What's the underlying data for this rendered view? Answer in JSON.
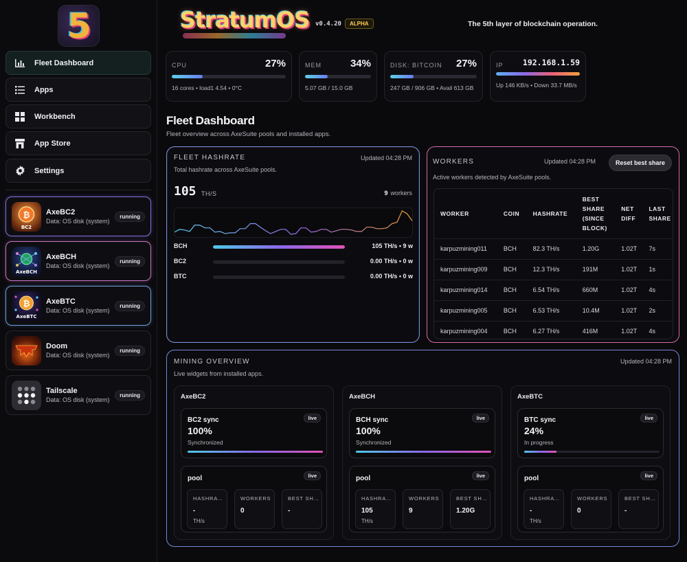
{
  "app": {
    "brand": "StratumOS",
    "version": "v0.4.20",
    "badge": "ALPHA",
    "tagline": "The 5th layer of blockchain operation."
  },
  "nav": [
    {
      "label": "Fleet Dashboard",
      "icon": "bar-chart-icon",
      "active": true
    },
    {
      "label": "Apps",
      "icon": "list-icon"
    },
    {
      "label": "Workbench",
      "icon": "grid-icon"
    },
    {
      "label": "App Store",
      "icon": "store-icon"
    },
    {
      "label": "Settings",
      "icon": "gear-icon"
    }
  ],
  "installed_apps": [
    {
      "name": "AxeBC2",
      "sub": "Data: OS disk (system)",
      "status": "running",
      "icon_text": "BC2",
      "accent": "#f07a2a"
    },
    {
      "name": "AxeBCH",
      "sub": "Data: OS disk (system)",
      "status": "running",
      "icon_text": "AxeBCH",
      "accent": "#3aa0e8"
    },
    {
      "name": "AxeBTC",
      "sub": "Data: OS disk (system)",
      "status": "running",
      "icon_text": "AxeBTC",
      "accent": "#f0a030"
    },
    {
      "name": "Doom",
      "sub": "Data: OS disk (system)",
      "status": "running",
      "accent": "#e05a20"
    },
    {
      "name": "Tailscale",
      "sub": "Data: OS disk (system)",
      "status": "running",
      "accent": "#3a3a40"
    }
  ],
  "stats": {
    "cpu": {
      "label": "CPU",
      "value": "27%",
      "pct": 27,
      "foot": "16 cores • load1 4.54 • 0°C"
    },
    "mem": {
      "label": "MEM",
      "value": "34%",
      "pct": 34,
      "foot": "5.07 GB / 15.0 GB"
    },
    "disk": {
      "label": "DISK: BITCOIN",
      "value": "27%",
      "pct": 27,
      "foot": "247 GB / 906 GB • Avail 613 GB"
    },
    "ip": {
      "label": "IP",
      "value": "192.168.1.59",
      "foot": "Up 146 KB/s • Down 33.7 MB/s"
    }
  },
  "page": {
    "title": "Fleet Dashboard",
    "subtitle": "Fleet overview across AxeSuite pools and installed apps."
  },
  "hashrate": {
    "title": "FLEET HASHRATE",
    "updated": "Updated 04:28 PM",
    "desc": "Total hashrate across AxeSuite pools.",
    "total": "105",
    "unit": "TH/S",
    "workers_n": "9",
    "workers_label": "workers",
    "spark": [
      40,
      44,
      43,
      41,
      50,
      50,
      46,
      46,
      40,
      41,
      38,
      39,
      39,
      45,
      45,
      52,
      52,
      47,
      42,
      38,
      41,
      44,
      44,
      37,
      38,
      46,
      46,
      40,
      41,
      44,
      44,
      40,
      42,
      44,
      44,
      43,
      41,
      41,
      47,
      47,
      45,
      45,
      46,
      52,
      54,
      70,
      66,
      56
    ],
    "coins": [
      {
        "coin": "BCH",
        "value": "105 TH/s • 9 w",
        "share": 1.0
      },
      {
        "coin": "BC2",
        "value": "0.00 TH/s • 0 w",
        "share": 0
      },
      {
        "coin": "BTC",
        "value": "0.00 TH/s • 0 w",
        "share": 0
      }
    ]
  },
  "workers": {
    "title": "WORKERS",
    "updated": "Updated 04:28 PM",
    "reset_label": "Reset best share",
    "desc": "Active workers detected by AxeSuite pools.",
    "columns": [
      "WORKER",
      "COIN",
      "HASHRATE",
      "BEST SHARE (SINCE BLOCK)",
      "NET DIFF",
      "LAST SHARE"
    ],
    "rows": [
      [
        "karpuzmining011",
        "BCH",
        "82.3 TH/s",
        "1.20G",
        "1.02T",
        "7s"
      ],
      [
        "karpuzmining009",
        "BCH",
        "12.3 TH/s",
        "191M",
        "1.02T",
        "1s"
      ],
      [
        "karpuzmining014",
        "BCH",
        "6.54 TH/s",
        "660M",
        "1.02T",
        "4s"
      ],
      [
        "karpuzmining005",
        "BCH",
        "6.53 TH/s",
        "10.4M",
        "1.02T",
        "2s"
      ],
      [
        "karpuzmining004",
        "BCH",
        "6.27 TH/s",
        "416M",
        "1.02T",
        "4s"
      ]
    ]
  },
  "mining": {
    "title": "MINING OVERVIEW",
    "updated": "Updated 04:28 PM",
    "desc": "Live widgets from installed apps.",
    "live_label": "live",
    "pool_label": "pool",
    "cols": [
      {
        "name": "AxeBC2",
        "sync_title": "BC2 sync",
        "sync_pct": "100%",
        "sync_value": 100,
        "sync_state": "Synchronized",
        "pool": [
          {
            "label": "HASHRATE",
            "value": "-",
            "unit": "TH/s"
          },
          {
            "label": "WORKERS",
            "value": "0",
            "unit": ""
          },
          {
            "label": "BEST SHARE",
            "value": "-",
            "unit": ""
          }
        ]
      },
      {
        "name": "AxeBCH",
        "sync_title": "BCH sync",
        "sync_pct": "100%",
        "sync_value": 100,
        "sync_state": "Synchronized",
        "pool": [
          {
            "label": "HASHRATE",
            "value": "105",
            "unit": "TH/s"
          },
          {
            "label": "WORKERS",
            "value": "9",
            "unit": ""
          },
          {
            "label": "BEST SHARE",
            "value": "1.20G",
            "unit": ""
          }
        ]
      },
      {
        "name": "AxeBTC",
        "sync_title": "BTC sync",
        "sync_pct": "24%",
        "sync_value": 24,
        "sync_state": "In progress",
        "pool": [
          {
            "label": "HASHRATE",
            "value": "-",
            "unit": "TH/s"
          },
          {
            "label": "WORKERS",
            "value": "0",
            "unit": ""
          },
          {
            "label": "BEST SHARE",
            "value": "-",
            "unit": ""
          }
        ]
      }
    ]
  },
  "colors": {
    "accent_cyan": "#4ec8e8",
    "accent_violet": "#8a6ae8",
    "accent_pink": "#e050b8",
    "alpha_gold": "#ffcf5a"
  }
}
